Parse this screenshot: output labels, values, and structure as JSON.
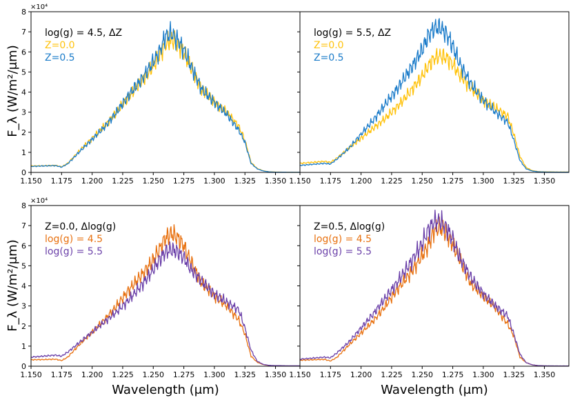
{
  "figure": {
    "xlabel": "Wavelength (μm)",
    "ylabel": "F_λ (W/m²/μm)",
    "multiplier": "×10⁴"
  },
  "chart_data": [
    {
      "type": "line",
      "title": "log(g) = 4.5, ΔZ",
      "xlim": [
        1.15,
        1.37
      ],
      "ylim": [
        0,
        80000
      ],
      "xticks": [
        "1.150",
        "1.175",
        "1.200",
        "1.225",
        "1.250",
        "1.275",
        "1.300",
        "1.325",
        "1.350"
      ],
      "yticks": [
        "0",
        "1",
        "2",
        "3",
        "4",
        "5",
        "6",
        "7",
        "8"
      ],
      "series": [
        {
          "name": "Z=0.0",
          "color": "#FFC20A",
          "x": [
            1.15,
            1.16,
            1.17,
            1.175,
            1.18,
            1.19,
            1.2,
            1.21,
            1.22,
            1.23,
            1.24,
            1.25,
            1.255,
            1.26,
            1.265,
            1.27,
            1.275,
            1.28,
            1.29,
            1.3,
            1.31,
            1.32,
            1.325,
            1.33,
            1.335,
            1.34,
            1.345,
            1.35,
            1.36,
            1.37
          ],
          "y": [
            3200,
            3300,
            3500,
            2800,
            4500,
            11000,
            17000,
            23000,
            30000,
            38000,
            45000,
            53000,
            58000,
            64000,
            66000,
            64000,
            60000,
            53000,
            41000,
            35000,
            30000,
            23000,
            16000,
            5000,
            2000,
            800,
            300,
            200,
            100,
            100
          ]
        },
        {
          "name": "Z=0.5",
          "color": "#1A7BC9",
          "x": [
            1.15,
            1.16,
            1.17,
            1.175,
            1.18,
            1.19,
            1.2,
            1.21,
            1.22,
            1.23,
            1.24,
            1.25,
            1.255,
            1.26,
            1.265,
            1.27,
            1.275,
            1.28,
            1.29,
            1.3,
            1.31,
            1.32,
            1.325,
            1.33,
            1.335,
            1.34,
            1.345,
            1.35,
            1.36,
            1.37
          ],
          "y": [
            3000,
            3200,
            3400,
            2600,
            4300,
            10500,
            16500,
            22500,
            30000,
            38500,
            46000,
            55000,
            60000,
            68000,
            69000,
            66000,
            61000,
            54000,
            41000,
            35000,
            29000,
            21000,
            15000,
            4500,
            1800,
            700,
            250,
            150,
            80,
            80
          ]
        }
      ]
    },
    {
      "type": "line",
      "title": "log(g) = 5.5, ΔZ",
      "xlim": [
        1.15,
        1.37
      ],
      "ylim": [
        0,
        80000
      ],
      "xticks": [
        "1.150",
        "1.175",
        "1.200",
        "1.225",
        "1.250",
        "1.275",
        "1.300",
        "1.325",
        "1.350"
      ],
      "yticks": [
        "0",
        "1",
        "2",
        "3",
        "4",
        "5",
        "6",
        "7",
        "8"
      ],
      "series": [
        {
          "name": "Z=0.0",
          "color": "#FFC20A",
          "x": [
            1.15,
            1.16,
            1.17,
            1.175,
            1.18,
            1.19,
            1.2,
            1.21,
            1.22,
            1.23,
            1.24,
            1.25,
            1.255,
            1.26,
            1.265,
            1.27,
            1.275,
            1.28,
            1.29,
            1.3,
            1.31,
            1.32,
            1.325,
            1.33,
            1.335,
            1.34,
            1.345,
            1.35,
            1.36,
            1.37
          ],
          "y": [
            4500,
            5000,
            5500,
            5000,
            7000,
            12000,
            17000,
            22000,
            27000,
            33000,
            40000,
            48000,
            53000,
            57000,
            58000,
            57000,
            54000,
            49000,
            42000,
            36000,
            32000,
            28000,
            19000,
            8000,
            2500,
            900,
            400,
            300,
            200,
            200
          ]
        },
        {
          "name": "Z=0.5",
          "color": "#1A7BC9",
          "x": [
            1.15,
            1.16,
            1.17,
            1.175,
            1.18,
            1.19,
            1.2,
            1.21,
            1.22,
            1.23,
            1.24,
            1.25,
            1.255,
            1.26,
            1.265,
            1.27,
            1.275,
            1.28,
            1.29,
            1.3,
            1.31,
            1.32,
            1.325,
            1.33,
            1.335,
            1.34,
            1.345,
            1.35,
            1.36,
            1.37
          ],
          "y": [
            3500,
            4000,
            4500,
            4200,
            6500,
            12000,
            19000,
            26000,
            34000,
            42000,
            51000,
            61000,
            68000,
            72000,
            72000,
            69000,
            63000,
            55000,
            44000,
            36000,
            30000,
            25000,
            16000,
            6000,
            1800,
            700,
            300,
            200,
            150,
            150
          ]
        }
      ]
    },
    {
      "type": "line",
      "title": "Z=0.0, Δlog(g)",
      "xlim": [
        1.15,
        1.37
      ],
      "ylim": [
        0,
        80000
      ],
      "xticks": [
        "1.150",
        "1.175",
        "1.200",
        "1.225",
        "1.250",
        "1.275",
        "1.300",
        "1.325",
        "1.350"
      ],
      "yticks": [
        "0",
        "1",
        "2",
        "3",
        "4",
        "5",
        "6",
        "7",
        "8"
      ],
      "series": [
        {
          "name": "log(g) = 4.5",
          "color": "#E8700E",
          "x": [
            1.15,
            1.16,
            1.17,
            1.175,
            1.18,
            1.19,
            1.2,
            1.21,
            1.22,
            1.23,
            1.24,
            1.25,
            1.255,
            1.26,
            1.265,
            1.27,
            1.275,
            1.28,
            1.29,
            1.3,
            1.31,
            1.32,
            1.325,
            1.33,
            1.335,
            1.34,
            1.345,
            1.35,
            1.36,
            1.37
          ],
          "y": [
            3200,
            3300,
            3500,
            2800,
            4500,
            11000,
            17000,
            23000,
            30000,
            38000,
            45000,
            53000,
            58000,
            64000,
            66000,
            64000,
            60000,
            53000,
            41000,
            35000,
            30000,
            23000,
            16000,
            5000,
            2000,
            800,
            300,
            200,
            100,
            100
          ]
        },
        {
          "name": "log(g) = 5.5",
          "color": "#6A3FA8",
          "x": [
            1.15,
            1.16,
            1.17,
            1.175,
            1.18,
            1.19,
            1.2,
            1.21,
            1.22,
            1.23,
            1.24,
            1.25,
            1.255,
            1.26,
            1.265,
            1.27,
            1.275,
            1.28,
            1.29,
            1.3,
            1.31,
            1.32,
            1.325,
            1.33,
            1.335,
            1.34,
            1.345,
            1.35,
            1.36,
            1.37
          ],
          "y": [
            4500,
            5000,
            5500,
            5000,
            7000,
            12000,
            17000,
            22000,
            27000,
            33000,
            40000,
            48000,
            53000,
            57000,
            58000,
            57000,
            54000,
            49000,
            42000,
            36000,
            32000,
            28000,
            19000,
            8000,
            2500,
            900,
            400,
            300,
            200,
            200
          ]
        }
      ]
    },
    {
      "type": "line",
      "title": "Z=0.5, Δlog(g)",
      "xlim": [
        1.15,
        1.37
      ],
      "ylim": [
        0,
        80000
      ],
      "xticks": [
        "1.150",
        "1.175",
        "1.200",
        "1.225",
        "1.250",
        "1.275",
        "1.300",
        "1.325",
        "1.350"
      ],
      "yticks": [
        "0",
        "1",
        "2",
        "3",
        "4",
        "5",
        "6",
        "7",
        "8"
      ],
      "series": [
        {
          "name": "log(g) = 4.5",
          "color": "#E8700E",
          "x": [
            1.15,
            1.16,
            1.17,
            1.175,
            1.18,
            1.19,
            1.2,
            1.21,
            1.22,
            1.23,
            1.24,
            1.25,
            1.255,
            1.26,
            1.265,
            1.27,
            1.275,
            1.28,
            1.29,
            1.3,
            1.31,
            1.32,
            1.325,
            1.33,
            1.335,
            1.34,
            1.345,
            1.35,
            1.36,
            1.37
          ],
          "y": [
            3000,
            3200,
            3400,
            2600,
            4300,
            10500,
            16500,
            22500,
            30000,
            38500,
            46000,
            55000,
            60000,
            68000,
            69000,
            66000,
            61000,
            54000,
            41000,
            35000,
            29000,
            21000,
            15000,
            4500,
            1800,
            700,
            250,
            150,
            80,
            80
          ]
        },
        {
          "name": "log(g) = 5.5",
          "color": "#6A3FA8",
          "x": [
            1.15,
            1.16,
            1.17,
            1.175,
            1.18,
            1.19,
            1.2,
            1.21,
            1.22,
            1.23,
            1.24,
            1.25,
            1.255,
            1.26,
            1.265,
            1.27,
            1.275,
            1.28,
            1.29,
            1.3,
            1.31,
            1.32,
            1.325,
            1.33,
            1.335,
            1.34,
            1.345,
            1.35,
            1.36,
            1.37
          ],
          "y": [
            3500,
            4000,
            4500,
            4200,
            6500,
            12000,
            19000,
            26000,
            34000,
            42000,
            51000,
            61000,
            68000,
            72000,
            72000,
            69000,
            63000,
            55000,
            44000,
            36000,
            30000,
            25000,
            16000,
            6000,
            1800,
            700,
            300,
            200,
            150,
            150
          ]
        }
      ]
    }
  ]
}
